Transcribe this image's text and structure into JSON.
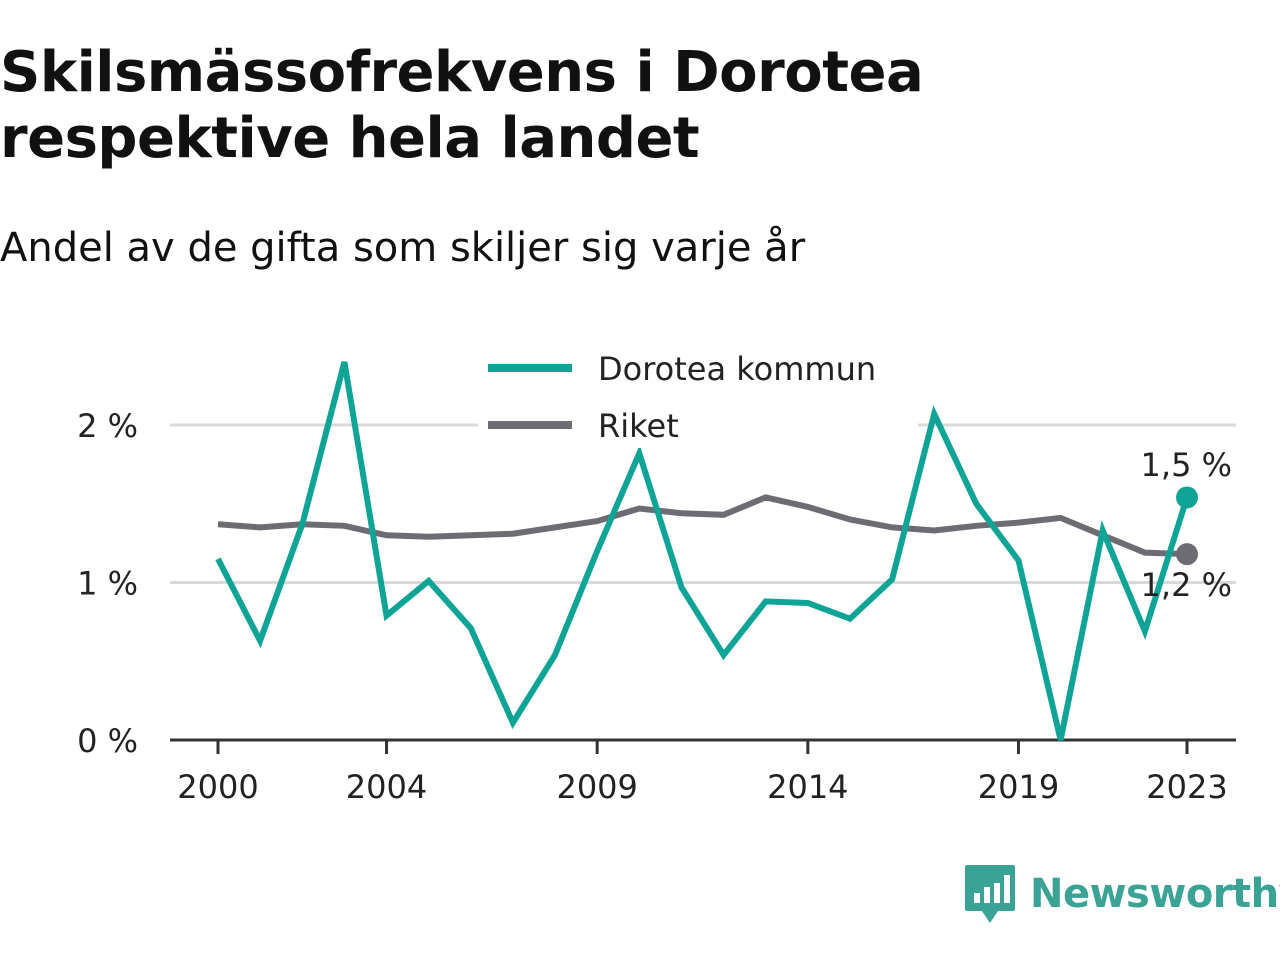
{
  "title": "Skilsmässofrekvens i Dorotea respektive hela landet",
  "subtitle": "Andel av de gifta som skiljer sig varje år",
  "brand": "Newsworthy",
  "colors": {
    "dorotea": "#10a497",
    "riket": "#6e6c73",
    "grid": "#d9d9d9",
    "axis": "#333333",
    "brand": "#3aa395"
  },
  "chart_data": {
    "type": "line",
    "title": "Skilsmässofrekvens i Dorotea respektive hela landet",
    "subtitle": "Andel av de gifta som skiljer sig varje år",
    "xlabel": "",
    "ylabel": "",
    "x": [
      2000,
      2001,
      2002,
      2003,
      2004,
      2005,
      2006,
      2007,
      2008,
      2009,
      2010,
      2011,
      2012,
      2013,
      2014,
      2015,
      2016,
      2017,
      2018,
      2019,
      2020,
      2021,
      2022,
      2023
    ],
    "xticks": [
      "2000",
      "2004",
      "2009",
      "2014",
      "2019",
      "2023"
    ],
    "yticks": [
      "0 %",
      "1 %",
      "2 %"
    ],
    "ylim": [
      0,
      2.4
    ],
    "grid": true,
    "legend_position": "top-center",
    "series": [
      {
        "name": "Dorotea kommun",
        "color": "#10a497",
        "values": [
          1.15,
          0.63,
          1.37,
          2.4,
          0.79,
          1.01,
          0.71,
          0.11,
          0.54,
          1.2,
          1.82,
          0.97,
          0.54,
          0.88,
          0.87,
          0.77,
          1.02,
          2.07,
          1.5,
          1.14,
          0.0,
          1.33,
          0.69,
          1.54
        ],
        "end_label": "1,5 %"
      },
      {
        "name": "Riket",
        "color": "#6e6c73",
        "values": [
          1.37,
          1.35,
          1.37,
          1.36,
          1.3,
          1.29,
          1.3,
          1.31,
          1.35,
          1.39,
          1.47,
          1.44,
          1.43,
          1.54,
          1.48,
          1.4,
          1.35,
          1.33,
          1.36,
          1.38,
          1.41,
          1.3,
          1.19,
          1.18
        ],
        "end_label": "1,2 %"
      }
    ]
  }
}
